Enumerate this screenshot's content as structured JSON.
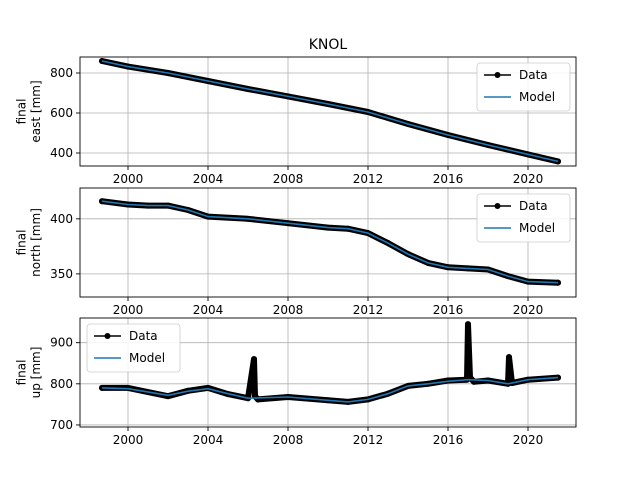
{
  "title": "KNOL",
  "legend_labels": {
    "data": "Data",
    "model": "Model"
  },
  "colors": {
    "data": "#000000",
    "model": "#1f77b4",
    "grid": "#b0b0b0",
    "axis": "#000000"
  },
  "chart_data": [
    {
      "type": "line",
      "ylabel_lines": [
        "final",
        "east [mm]"
      ],
      "xlim": [
        1997.6,
        2022.4
      ],
      "ylim": [
        335,
        880
      ],
      "xticks": [
        2000,
        2004,
        2008,
        2012,
        2016,
        2020
      ],
      "yticks": [
        400,
        600,
        800
      ],
      "grid": true,
      "legend": "upper right",
      "series": [
        {
          "name": "Data",
          "style": "line-with-dot-markers",
          "x": [
            1998.7,
            2000,
            2002,
            2004,
            2006,
            2008,
            2010,
            2012,
            2014,
            2016,
            2018,
            2020,
            2021.5
          ],
          "y": [
            860,
            832,
            800,
            760,
            720,
            683,
            645,
            605,
            545,
            490,
            440,
            393,
            358
          ]
        },
        {
          "name": "Model",
          "style": "line",
          "x": [
            1998.7,
            2000,
            2002,
            2004,
            2006,
            2008,
            2010,
            2012,
            2014,
            2016,
            2018,
            2020,
            2021.5
          ],
          "y": [
            860,
            832,
            800,
            760,
            720,
            683,
            645,
            605,
            545,
            490,
            440,
            393,
            358
          ]
        }
      ]
    },
    {
      "type": "line",
      "ylabel_lines": [
        "final",
        "north [mm]"
      ],
      "xlim": [
        1997.6,
        2022.4
      ],
      "ylim": [
        329,
        428
      ],
      "xticks": [
        2000,
        2004,
        2008,
        2012,
        2016,
        2020
      ],
      "yticks": [
        350,
        400
      ],
      "grid": true,
      "legend": "upper right",
      "series": [
        {
          "name": "Data",
          "style": "line-with-dot-markers",
          "x": [
            1998.7,
            2000,
            2001,
            2002,
            2003,
            2004,
            2006,
            2008,
            2010,
            2011,
            2012,
            2013,
            2014,
            2015,
            2016,
            2017,
            2018,
            2019,
            2020,
            2021.5
          ],
          "y": [
            416,
            413,
            412,
            412,
            408,
            402,
            400,
            396,
            392,
            391,
            387,
            378,
            368,
            360,
            356,
            355,
            354,
            348,
            343,
            342
          ]
        },
        {
          "name": "Model",
          "style": "line",
          "x": [
            1998.7,
            2000,
            2001,
            2002,
            2003,
            2004,
            2006,
            2008,
            2010,
            2011,
            2012,
            2013,
            2014,
            2015,
            2016,
            2017,
            2018,
            2019,
            2020,
            2021.5
          ],
          "y": [
            416,
            413,
            412,
            412,
            408,
            402,
            400,
            396,
            392,
            391,
            387,
            378,
            368,
            360,
            356,
            355,
            354,
            348,
            343,
            342
          ]
        }
      ]
    },
    {
      "type": "line",
      "ylabel_lines": [
        "final",
        "up [mm]"
      ],
      "xlim": [
        1997.6,
        2022.4
      ],
      "ylim": [
        695,
        960
      ],
      "xticks": [
        2000,
        2004,
        2008,
        2012,
        2016,
        2020
      ],
      "yticks": [
        700,
        800,
        900
      ],
      "grid": true,
      "legend": "upper left",
      "series": [
        {
          "name": "Data",
          "style": "line-with-dot-markers",
          "x": [
            1998.7,
            2000,
            2002,
            2003,
            2004,
            2005,
            2006,
            2006.3,
            2006.35,
            2006.5,
            2008,
            2010,
            2011,
            2012,
            2013,
            2014,
            2015,
            2016,
            2016.95,
            2017.0,
            2017.1,
            2017.3,
            2018,
            2019,
            2019.05,
            2019.2,
            2020,
            2021.5
          ],
          "y": [
            790,
            790,
            770,
            783,
            790,
            775,
            765,
            860,
            770,
            762,
            768,
            760,
            756,
            762,
            776,
            795,
            800,
            808,
            810,
            945,
            815,
            805,
            808,
            800,
            865,
            802,
            810,
            815
          ]
        },
        {
          "name": "Model",
          "style": "line",
          "x": [
            1998.7,
            2000,
            2002,
            2003,
            2004,
            2005,
            2006,
            2008,
            2010,
            2011,
            2012,
            2013,
            2014,
            2015,
            2016,
            2017,
            2018,
            2019,
            2020,
            2021.5
          ],
          "y": [
            790,
            788,
            772,
            782,
            788,
            776,
            765,
            768,
            760,
            756,
            762,
            776,
            795,
            800,
            806,
            810,
            808,
            800,
            810,
            815
          ]
        }
      ]
    }
  ]
}
